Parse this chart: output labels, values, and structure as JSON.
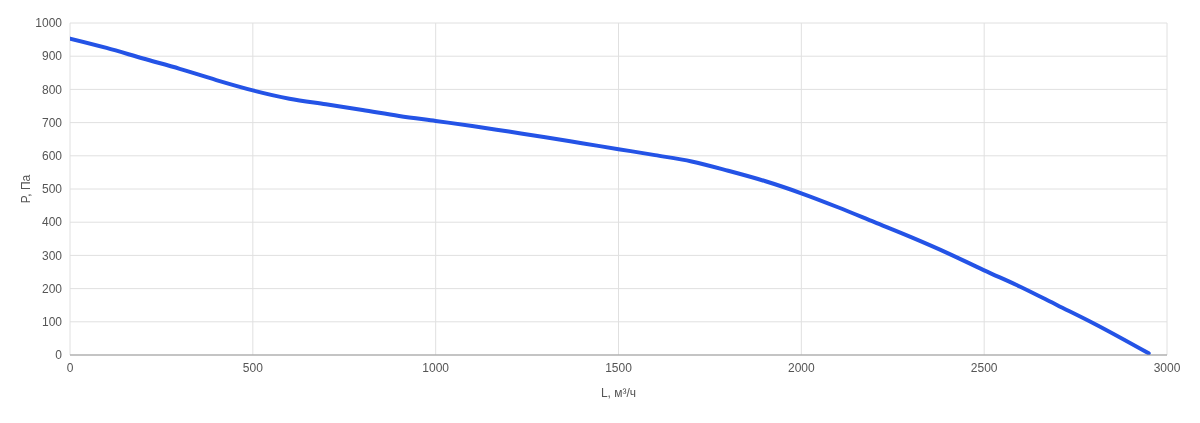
{
  "chart_data": {
    "type": "line",
    "xlabel": "L, м³/ч",
    "ylabel": "P, Па",
    "x": [
      0,
      100,
      200,
      300,
      400,
      500,
      600,
      700,
      800,
      900,
      1000,
      1100,
      1200,
      1300,
      1400,
      1500,
      1600,
      1700,
      1800,
      1900,
      2000,
      2100,
      2200,
      2300,
      2400,
      2500,
      2600,
      2700,
      2800,
      2950
    ],
    "series": [
      {
        "color": "#2453e6",
        "values": [
          953,
          925,
          893,
          862,
          828,
          797,
          772,
          755,
          738,
          720,
          705,
          690,
          673,
          656,
          638,
          620,
          602,
          583,
          555,
          524,
          487,
          445,
          400,
          355,
          307,
          255,
          205,
          150,
          95,
          5
        ]
      }
    ],
    "xlim": [
      0,
      3000
    ],
    "xticks": [
      0,
      500,
      1000,
      1500,
      2000,
      2500,
      3000
    ],
    "ylim": [
      0,
      1000
    ],
    "yticks": [
      0,
      100,
      200,
      300,
      400,
      500,
      600,
      700,
      800,
      900,
      1000
    ],
    "grid": true,
    "marker": "none",
    "line_style": "solid",
    "legend": false
  }
}
